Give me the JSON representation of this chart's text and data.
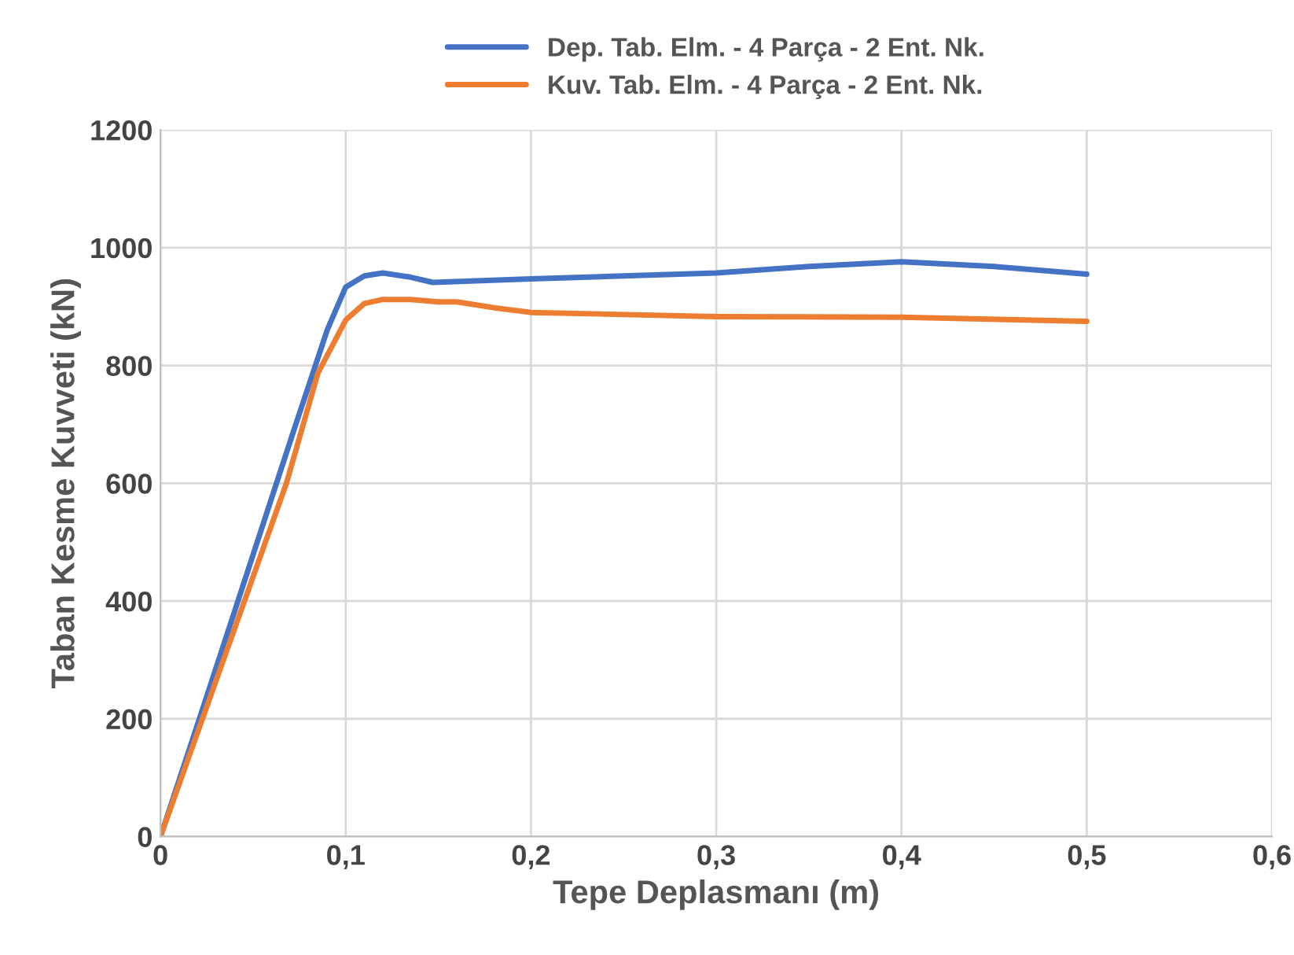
{
  "chart_data": {
    "type": "line",
    "xlabel": "Tepe Deplasmanı (m)",
    "ylabel": "Taban Kesme Kuvveti (kN)",
    "series": [
      {
        "name": "Dep. Tab. Elm. - 4 Parça - 2 Ent. Nk.",
        "color": "#4472c4",
        "x": [
          0,
          0.018,
          0.072,
          0.09,
          0.1,
          0.11,
          0.12,
          0.135,
          0.147,
          0.2,
          0.3,
          0.35,
          0.4,
          0.45,
          0.5
        ],
        "values": [
          0,
          171,
          690,
          860,
          933,
          952,
          957,
          950,
          941,
          947,
          957,
          968,
          976,
          968,
          955
        ]
      },
      {
        "name": "Kuv. Tab. Elm. - 4 Parça - 2 Ent. Nk.",
        "color": "#ed7d31",
        "x": [
          0,
          0.068,
          0.085,
          0.1,
          0.11,
          0.12,
          0.135,
          0.15,
          0.16,
          0.18,
          0.2,
          0.3,
          0.4,
          0.5
        ],
        "values": [
          0,
          600,
          787,
          877,
          905,
          912,
          912,
          908,
          908,
          898,
          890,
          883,
          882,
          875
        ]
      }
    ],
    "xlim": [
      0,
      0.6
    ],
    "xticks": [
      {
        "value": 0,
        "label": "0"
      },
      {
        "value": 0.1,
        "label": "0,1"
      },
      {
        "value": 0.2,
        "label": "0,2"
      },
      {
        "value": 0.3,
        "label": "0,3"
      },
      {
        "value": 0.4,
        "label": "0,4"
      },
      {
        "value": 0.5,
        "label": "0,5"
      },
      {
        "value": 0.6,
        "label": "0,6"
      }
    ],
    "ylim": [
      0,
      1200
    ],
    "yticks": [
      0,
      200,
      400,
      600,
      800,
      1000,
      1200
    ],
    "grid": true,
    "legend": "top",
    "marker": "none",
    "line_style": "solid"
  }
}
